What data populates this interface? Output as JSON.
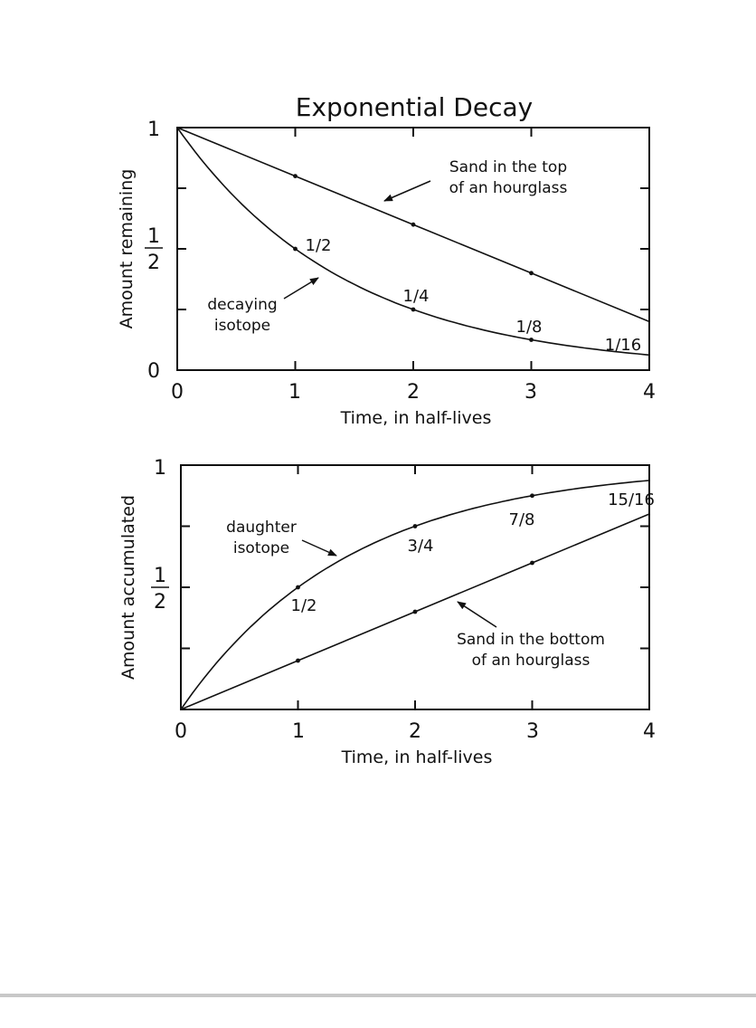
{
  "chart_data": [
    {
      "type": "line",
      "title": "Exponential Decay",
      "xlabel": "Time, in half-lives",
      "ylabel": "Amount remaining",
      "x_ticks": [
        "0",
        "1",
        "2",
        "3",
        "4"
      ],
      "y_ticks": {
        "top": "1",
        "half_num": "1",
        "half_den": "2",
        "bottom": "0"
      },
      "xlim": [
        0,
        4
      ],
      "ylim": [
        0,
        1
      ],
      "series": [
        {
          "name": "decaying isotope",
          "x": [
            0,
            1,
            2,
            3,
            4
          ],
          "y": [
            1,
            0.5,
            0.25,
            0.125,
            0.0625
          ],
          "point_labels": [
            "",
            "1/2",
            "1/4",
            "1/8",
            "1/16"
          ]
        },
        {
          "name": "Sand in the top of an hourglass",
          "x": [
            0,
            1,
            2,
            3,
            4
          ],
          "y": [
            1,
            0.8,
            0.6,
            0.4,
            0.2
          ]
        }
      ],
      "annotations": {
        "sand_line1": "Sand in the top",
        "sand_line2": "of an hourglass",
        "iso_line1": "decaying",
        "iso_line2": "isotope"
      }
    },
    {
      "type": "line",
      "title": "",
      "xlabel": "Time, in half-lives",
      "ylabel": "Amount accumulated",
      "x_ticks": [
        "0",
        "1",
        "2",
        "3",
        "4"
      ],
      "y_ticks": {
        "top": "1",
        "half_num": "1",
        "half_den": "2"
      },
      "xlim": [
        0,
        4
      ],
      "ylim": [
        0,
        1
      ],
      "series": [
        {
          "name": "daughter isotope",
          "x": [
            0,
            1,
            2,
            3,
            4
          ],
          "y": [
            0,
            0.5,
            0.75,
            0.875,
            0.9375
          ],
          "point_labels": [
            "",
            "1/2",
            "3/4",
            "7/8",
            "15/16"
          ]
        },
        {
          "name": "Sand in the bottom of an hourglass",
          "x": [
            0,
            1,
            2,
            3,
            4
          ],
          "y": [
            0,
            0.2,
            0.4,
            0.6,
            0.8
          ]
        }
      ],
      "annotations": {
        "iso_line1": "daughter",
        "iso_line2": "isotope",
        "sand_line1": "Sand in the bottom",
        "sand_line2": "of an hourglass"
      }
    }
  ]
}
